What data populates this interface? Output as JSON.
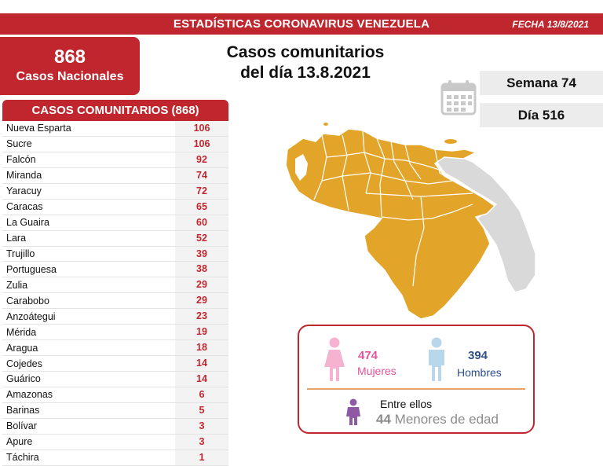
{
  "header": {
    "title": "ESTADÍSTICAS CORONAVIRUS VENEZUELA",
    "fecha": "FECHA 13/8/2021"
  },
  "national": {
    "count": "868",
    "label": "Casos Nacionales"
  },
  "headline": {
    "line1": "Casos comunitarios",
    "line2": "del día 13.8.2021"
  },
  "semana": "Semana 74",
  "dia": "Día 516",
  "table": {
    "title": "CASOS COMUNITARIOS (868)",
    "rows": [
      {
        "state": "Nueva Esparta",
        "count": "106"
      },
      {
        "state": "Sucre",
        "count": "106"
      },
      {
        "state": "Falcón",
        "count": "92"
      },
      {
        "state": "Miranda",
        "count": "74"
      },
      {
        "state": "Yaracuy",
        "count": "72"
      },
      {
        "state": "Caracas",
        "count": "65"
      },
      {
        "state": "La Guaira",
        "count": "60"
      },
      {
        "state": "Lara",
        "count": "52"
      },
      {
        "state": "Trujillo",
        "count": "39"
      },
      {
        "state": "Portuguesa",
        "count": "38"
      },
      {
        "state": "Zulia",
        "count": "29"
      },
      {
        "state": "Carabobo",
        "count": "29"
      },
      {
        "state": "Anzoátegui",
        "count": "23"
      },
      {
        "state": "Mérida",
        "count": "19"
      },
      {
        "state": "Aragua",
        "count": "18"
      },
      {
        "state": "Cojedes",
        "count": "14"
      },
      {
        "state": "Guárico",
        "count": "14"
      },
      {
        "state": "Amazonas",
        "count": "6"
      },
      {
        "state": "Barinas",
        "count": "5"
      },
      {
        "state": "Bolívar",
        "count": "3"
      },
      {
        "state": "Apure",
        "count": "3"
      },
      {
        "state": "Táchira",
        "count": "1"
      }
    ]
  },
  "gender": {
    "women_count": "474",
    "women_label": "Mujeres",
    "men_count": "394",
    "men_label": "Hombres",
    "entre": "Entre ellos",
    "minors_count": "44",
    "minors_label": "Menores de edad"
  },
  "colors": {
    "brand_red": "#c0262d",
    "map_active": "#e2a52a",
    "map_inactive": "#d9d9d9",
    "women": "#e3559b",
    "men": "#2f4e8a",
    "minors": "#8e5aa6"
  }
}
